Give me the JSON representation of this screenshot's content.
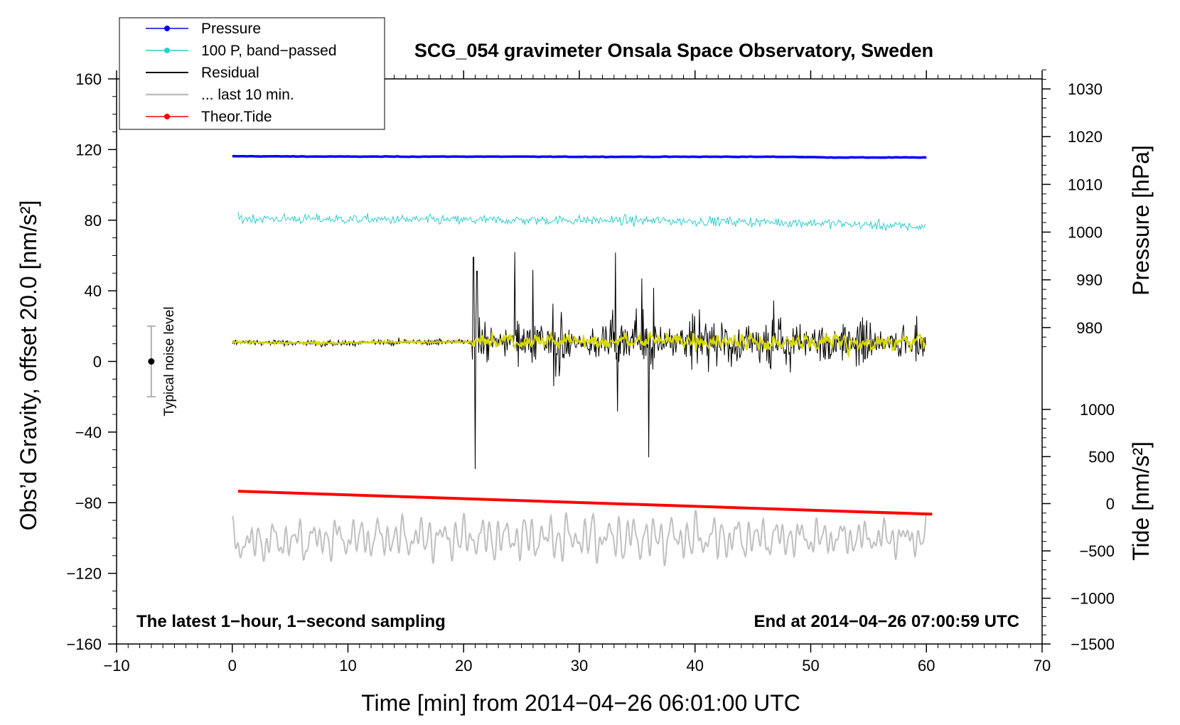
{
  "chart_data": {
    "type": "line",
    "title": "SCG_054 gravimeter Onsala Space Observatory, Sweden",
    "xlabel": "Time [min] from 2014−04−26 06:01:00 UTC",
    "ylabel": "Obs’d Gravity, offset 20.0 [nm/s²]",
    "xlim": [
      -10,
      70
    ],
    "ylim": [
      -160,
      160
    ],
    "x_ticks": [
      -10,
      0,
      10,
      20,
      30,
      40,
      50,
      60,
      70
    ],
    "x_tick_labels": [
      "−10",
      "0",
      "10",
      "20",
      "30",
      "40",
      "50",
      "60",
      "70"
    ],
    "y_ticks": [
      -160,
      -120,
      -80,
      -40,
      0,
      40,
      80,
      120,
      160
    ],
    "y_tick_labels": [
      "−160",
      "−120",
      "−80",
      "−40",
      "0",
      "40",
      "80",
      "120",
      "160"
    ],
    "pressure_axis": {
      "label": "Pressure [hPa]",
      "ticks": [
        980,
        990,
        1000,
        1010,
        1020,
        1030
      ],
      "tick_labels": [
        "980",
        "990",
        "1000",
        "1010",
        "1020",
        "1030"
      ],
      "left_value_at": [
        [
          120,
          1017.3
        ],
        [
          80,
          1002.5
        ]
      ]
    },
    "tide_axis": {
      "label": "Tide [nm/s²]",
      "ticks": [
        -1500,
        -1000,
        -500,
        0,
        500,
        1000
      ],
      "tick_labels": [
        "−1500",
        "−1000",
        "−500",
        "0",
        "500",
        "1000"
      ],
      "left_value_at": [
        [
          -160,
          -1500
        ],
        [
          -134.1,
          -1000
        ],
        [
          -107.3,
          -500
        ],
        [
          -80.5,
          0
        ],
        [
          -53.9,
          500
        ],
        [
          -27.2,
          1000
        ]
      ]
    },
    "series": [
      {
        "name": "Pressure",
        "color": "#0000ff",
        "x": [
          0,
          10,
          20,
          30,
          40,
          48,
          52,
          60
        ],
        "y": [
          116.2,
          116.0,
          116.0,
          115.9,
          115.9,
          115.9,
          115.5,
          115.5
        ]
      },
      {
        "name": "100 P, band−passed",
        "color": "#33cccc",
        "x": [
          0,
          10,
          20,
          30,
          40,
          50,
          60
        ],
        "y": [
          81,
          80.5,
          80,
          80,
          79.5,
          78.5,
          76
        ]
      },
      {
        "name": "Residual",
        "color": "#000000",
        "x": [
          0,
          5,
          10,
          15,
          20,
          20.7,
          25,
          30,
          35,
          40,
          45,
          50,
          55,
          60
        ],
        "y": [
          11,
          10.5,
          10.5,
          11,
          11,
          11,
          12,
          11,
          12,
          11,
          11,
          11,
          11,
          11
        ],
        "noise_start": 20.7
      },
      {
        "name": "... last 10 min.",
        "color": "#c0c0c0",
        "x": [
          0,
          10,
          20,
          30,
          40,
          50,
          60
        ],
        "y": [
          -103,
          -100,
          -100,
          -100,
          -100,
          -100,
          -100
        ]
      },
      {
        "name": "Theor.Tide",
        "color": "#ff0000",
        "x": [
          0.5,
          60.5
        ],
        "y": [
          -73.5,
          -86.5
        ]
      }
    ],
    "residual_smoothed_color": "#d8d800",
    "annotations": {
      "noise_level_label": "Typical noise level",
      "noise_level_x": -7,
      "noise_level_center": 0,
      "noise_level_range": [
        -20,
        20
      ],
      "bottom_left_note": "The latest 1−hour, 1−second sampling",
      "bottom_right_note": "End at 2014−04−26 07:00:59 UTC"
    },
    "legend": {
      "placement": "top-left",
      "entries": [
        "Pressure",
        "100 P, band−passed",
        "Residual",
        "... last 10 min.",
        "Theor.Tide"
      ]
    }
  }
}
